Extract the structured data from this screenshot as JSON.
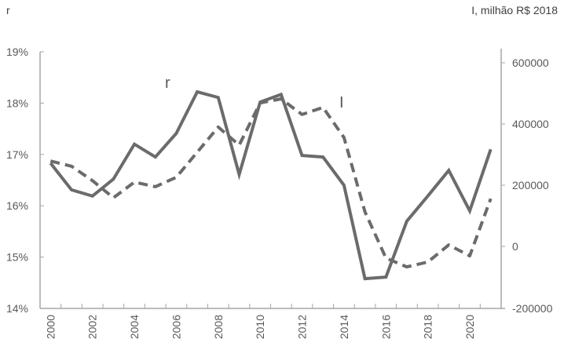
{
  "chart_data": {
    "type": "line",
    "title": "",
    "left_axis_title": "r",
    "right_axis_title": "I, milhão R$ 2018",
    "xlabel": "",
    "categories": [
      "2000",
      "2001",
      "2002",
      "2003",
      "2004",
      "2005",
      "2006",
      "2007",
      "2008",
      "2009",
      "2010",
      "2011",
      "2012",
      "2013",
      "2014",
      "2015",
      "2016",
      "2017",
      "2018",
      "2019",
      "2020",
      "2021"
    ],
    "x_tick_labels": [
      "2000",
      "2002",
      "2004",
      "2006",
      "2008",
      "2010",
      "2012",
      "2014",
      "2016",
      "2018",
      "2020"
    ],
    "left_axis": {
      "ylim": [
        14,
        19
      ],
      "ticks": [
        19,
        18,
        17,
        16,
        15,
        14
      ],
      "tick_labels": [
        "19%",
        "18%",
        "17%",
        "16%",
        "15%",
        "14%"
      ]
    },
    "right_axis": {
      "ylim": [
        -200000,
        650000
      ],
      "ticks": [
        600000,
        400000,
        200000,
        0,
        -200000
      ],
      "tick_labels": [
        "600000",
        "400000",
        "200000",
        "0",
        "-200000"
      ]
    },
    "series": [
      {
        "name": "r",
        "axis": "left",
        "style": "solid",
        "color": "#6b6b6b",
        "unit": "%",
        "values": [
          16.83,
          16.31,
          16.19,
          16.52,
          17.2,
          16.95,
          17.41,
          18.22,
          18.11,
          16.61,
          18.02,
          18.17,
          16.98,
          16.95,
          16.4,
          14.58,
          14.61,
          15.7,
          16.19,
          16.69,
          15.9,
          17.1
        ]
      },
      {
        "name": "I",
        "axis": "right",
        "style": "dashed",
        "color": "#6b6b6b",
        "unit": "milhão R$ 2018",
        "values": [
          279000,
          262000,
          215000,
          159000,
          210000,
          195000,
          226000,
          308000,
          390000,
          331000,
          469000,
          482000,
          431000,
          454000,
          356000,
          113000,
          -38000,
          -67000,
          -51000,
          5000,
          -31000,
          156000
        ]
      }
    ],
    "annotations": [
      {
        "text": "r",
        "near": "2006-2007",
        "series": "r"
      },
      {
        "text": "I",
        "near": "2014",
        "series": "I"
      }
    ],
    "grid": false,
    "legend": "none (inline labels)"
  }
}
